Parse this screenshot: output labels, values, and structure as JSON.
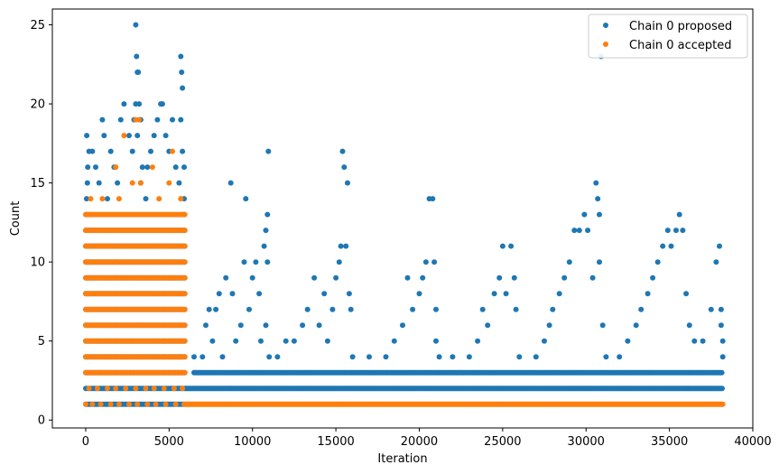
{
  "chart_data": {
    "type": "scatter",
    "title": "",
    "xlabel": "Iteration",
    "ylabel": "Count",
    "xlim": [
      -2000,
      40000
    ],
    "ylim": [
      -0.5,
      26
    ],
    "xticks": [
      0,
      5000,
      10000,
      15000,
      20000,
      25000,
      30000,
      35000,
      40000
    ],
    "yticks": [
      0,
      5,
      10,
      15,
      20,
      25
    ],
    "grid": false,
    "legend_position": "top-right",
    "series": [
      {
        "name": "Chain 0 proposed",
        "color": "#1f77b4",
        "bands": [
          {
            "x": [
              0,
              6000
            ],
            "y": [
              1,
              12
            ],
            "step": 90
          },
          {
            "x": [
              6000,
              38200
            ],
            "y": [
              2,
              2
            ],
            "step": 60
          },
          {
            "x": [
              6500,
              38200
            ],
            "y": [
              3,
              3
            ],
            "step": 70
          }
        ],
        "points": [
          [
            50,
            13
          ],
          [
            50,
            14
          ],
          [
            100,
            15
          ],
          [
            120,
            16
          ],
          [
            200,
            17
          ],
          [
            60,
            18
          ],
          [
            400,
            17
          ],
          [
            600,
            16
          ],
          [
            800,
            15
          ],
          [
            1000,
            19
          ],
          [
            1100,
            18
          ],
          [
            1300,
            14
          ],
          [
            1500,
            17
          ],
          [
            1700,
            16
          ],
          [
            1900,
            15
          ],
          [
            2100,
            19
          ],
          [
            2300,
            20
          ],
          [
            2600,
            18
          ],
          [
            2800,
            17
          ],
          [
            3000,
            25
          ],
          [
            3050,
            23
          ],
          [
            3100,
            22
          ],
          [
            3150,
            22
          ],
          [
            3000,
            20
          ],
          [
            3200,
            20
          ],
          [
            2900,
            19
          ],
          [
            3300,
            19
          ],
          [
            3100,
            18
          ],
          [
            3400,
            16
          ],
          [
            3300,
            15
          ],
          [
            3600,
            14
          ],
          [
            3700,
            16
          ],
          [
            3900,
            17
          ],
          [
            4100,
            18
          ],
          [
            4300,
            19
          ],
          [
            4500,
            20
          ],
          [
            4600,
            20
          ],
          [
            4800,
            18
          ],
          [
            5000,
            17
          ],
          [
            5200,
            19
          ],
          [
            5400,
            16
          ],
          [
            5600,
            15
          ],
          [
            5700,
            23
          ],
          [
            5750,
            22
          ],
          [
            5800,
            21
          ],
          [
            5700,
            19
          ],
          [
            5800,
            17
          ],
          [
            5900,
            16
          ],
          [
            5900,
            14
          ],
          [
            5900,
            13
          ],
          [
            6500,
            4
          ],
          [
            7000,
            4
          ],
          [
            7200,
            6
          ],
          [
            7400,
            7
          ],
          [
            7600,
            5
          ],
          [
            7800,
            7
          ],
          [
            8000,
            8
          ],
          [
            8200,
            4
          ],
          [
            8400,
            9
          ],
          [
            8700,
            15
          ],
          [
            8800,
            8
          ],
          [
            9000,
            5
          ],
          [
            9300,
            6
          ],
          [
            9500,
            10
          ],
          [
            9600,
            14
          ],
          [
            9800,
            7
          ],
          [
            10000,
            9
          ],
          [
            10200,
            10
          ],
          [
            10400,
            8
          ],
          [
            10500,
            5
          ],
          [
            10700,
            11
          ],
          [
            10800,
            12
          ],
          [
            10900,
            13
          ],
          [
            10950,
            17
          ],
          [
            10900,
            10
          ],
          [
            10800,
            6
          ],
          [
            11000,
            4
          ],
          [
            11500,
            4
          ],
          [
            12000,
            5
          ],
          [
            12500,
            5
          ],
          [
            13000,
            6
          ],
          [
            13300,
            7
          ],
          [
            13700,
            9
          ],
          [
            14000,
            6
          ],
          [
            14300,
            8
          ],
          [
            14500,
            5
          ],
          [
            14800,
            7
          ],
          [
            15000,
            9
          ],
          [
            15200,
            10
          ],
          [
            15300,
            11
          ],
          [
            15400,
            17
          ],
          [
            15500,
            16
          ],
          [
            15700,
            15
          ],
          [
            15600,
            11
          ],
          [
            15800,
            8
          ],
          [
            15900,
            7
          ],
          [
            16000,
            4
          ],
          [
            17000,
            4
          ],
          [
            18000,
            4
          ],
          [
            18500,
            5
          ],
          [
            19000,
            6
          ],
          [
            19300,
            9
          ],
          [
            19600,
            7
          ],
          [
            20000,
            8
          ],
          [
            20200,
            9
          ],
          [
            20400,
            10
          ],
          [
            20600,
            14
          ],
          [
            20800,
            14
          ],
          [
            20900,
            10
          ],
          [
            21000,
            7
          ],
          [
            21000,
            5
          ],
          [
            21200,
            4
          ],
          [
            22000,
            4
          ],
          [
            23000,
            4
          ],
          [
            23500,
            5
          ],
          [
            23800,
            7
          ],
          [
            24100,
            6
          ],
          [
            24500,
            8
          ],
          [
            24800,
            9
          ],
          [
            25000,
            11
          ],
          [
            25200,
            8
          ],
          [
            25500,
            11
          ],
          [
            25700,
            9
          ],
          [
            25800,
            7
          ],
          [
            26000,
            4
          ],
          [
            27000,
            4
          ],
          [
            27500,
            5
          ],
          [
            27800,
            6
          ],
          [
            28000,
            7
          ],
          [
            28400,
            8
          ],
          [
            28700,
            9
          ],
          [
            29000,
            10
          ],
          [
            29300,
            12
          ],
          [
            29600,
            12
          ],
          [
            29900,
            13
          ],
          [
            30100,
            12
          ],
          [
            30400,
            9
          ],
          [
            30600,
            15
          ],
          [
            30700,
            14
          ],
          [
            30800,
            13
          ],
          [
            30900,
            23
          ],
          [
            30800,
            10
          ],
          [
            31000,
            6
          ],
          [
            31200,
            4
          ],
          [
            32000,
            4
          ],
          [
            32500,
            5
          ],
          [
            33000,
            6
          ],
          [
            33300,
            7
          ],
          [
            33700,
            8
          ],
          [
            34000,
            9
          ],
          [
            34300,
            10
          ],
          [
            34600,
            11
          ],
          [
            34900,
            12
          ],
          [
            35100,
            11
          ],
          [
            35400,
            12
          ],
          [
            35600,
            13
          ],
          [
            35800,
            12
          ],
          [
            36000,
            8
          ],
          [
            36200,
            6
          ],
          [
            36500,
            5
          ],
          [
            37000,
            5
          ],
          [
            37500,
            7
          ],
          [
            37800,
            10
          ],
          [
            38000,
            11
          ],
          [
            38100,
            7
          ],
          [
            38100,
            6
          ],
          [
            38200,
            5
          ],
          [
            38200,
            4
          ]
        ]
      },
      {
        "name": "Chain 0 accepted",
        "color": "#ff7f0e",
        "bands": [
          {
            "x": [
              0,
              6000
            ],
            "y": [
              3,
              13
            ],
            "step": 110
          },
          {
            "x": [
              6000,
              38200
            ],
            "y": [
              1,
              1
            ],
            "step": 50
          }
        ],
        "points": [
          [
            0,
            1
          ],
          [
            400,
            1
          ],
          [
            900,
            1
          ],
          [
            1500,
            1
          ],
          [
            2000,
            1
          ],
          [
            2600,
            1
          ],
          [
            3100,
            1
          ],
          [
            3700,
            1
          ],
          [
            4200,
            1
          ],
          [
            4800,
            1
          ],
          [
            5400,
            1
          ],
          [
            5900,
            1
          ],
          [
            200,
            2
          ],
          [
            700,
            2
          ],
          [
            1300,
            2
          ],
          [
            1800,
            2
          ],
          [
            2400,
            2
          ],
          [
            3000,
            2
          ],
          [
            3600,
            2
          ],
          [
            4100,
            2
          ],
          [
            4700,
            2
          ],
          [
            5300,
            2
          ],
          [
            5800,
            2
          ],
          [
            2300,
            18
          ],
          [
            3000,
            19
          ],
          [
            3200,
            19
          ],
          [
            1800,
            16
          ],
          [
            2000,
            14
          ],
          [
            2800,
            15
          ],
          [
            3300,
            15
          ],
          [
            4400,
            14
          ],
          [
            5200,
            17
          ],
          [
            5000,
            15
          ],
          [
            5700,
            14
          ],
          [
            4000,
            16
          ],
          [
            1000,
            14
          ],
          [
            300,
            14
          ]
        ]
      }
    ]
  }
}
